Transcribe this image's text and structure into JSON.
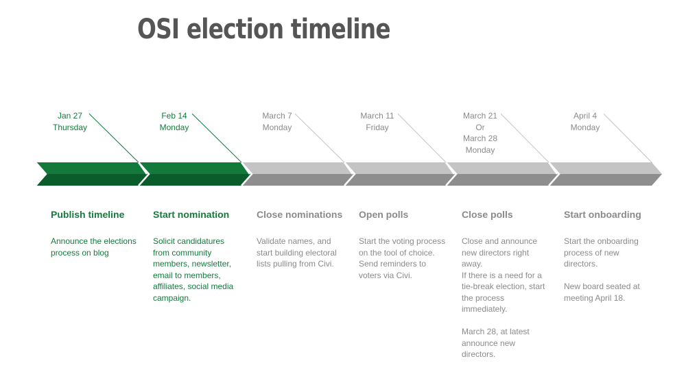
{
  "title": "OSI election timeline",
  "colors": {
    "green_top": "#137a3c",
    "green_bottom": "#0b5c2b",
    "gray_top": "#c4c4c4",
    "gray_bottom": "#8e8e8e"
  },
  "milestones": [
    {
      "date": "Jan 27\nThursday",
      "heading": "Publish timeline",
      "desc": [
        "Announce the elections process on blog"
      ],
      "status": "done"
    },
    {
      "date": "Feb 14\nMonday",
      "heading": "Start nomination",
      "desc": [
        "Solicit candidatures from community members, newsletter, email to members, affiliates, social media campaign."
      ],
      "status": "done"
    },
    {
      "date": "March 7\nMonday",
      "heading": "Close nominations",
      "desc": [
        "Validate names, and start building electoral lists pulling from Civi."
      ],
      "status": "pending"
    },
    {
      "date": "March 11\nFriday",
      "heading": "Open polls",
      "desc": [
        "Start the voting process on the tool of choice. Send reminders to voters via Civi."
      ],
      "status": "pending"
    },
    {
      "date": "March 21\nOr\nMarch 28\nMonday",
      "heading": "Close polls",
      "desc": [
        "Close and announce new directors right away.\nIf there is a need for a tie-break election, start the process immediately.",
        "March 28, at latest announce new directors."
      ],
      "status": "pending"
    },
    {
      "date": "April 4\nMonday",
      "heading": "Start onboarding",
      "desc": [
        "Start the onboarding process of new directors.",
        "New board seated at meeting April 18."
      ],
      "status": "pending"
    }
  ]
}
